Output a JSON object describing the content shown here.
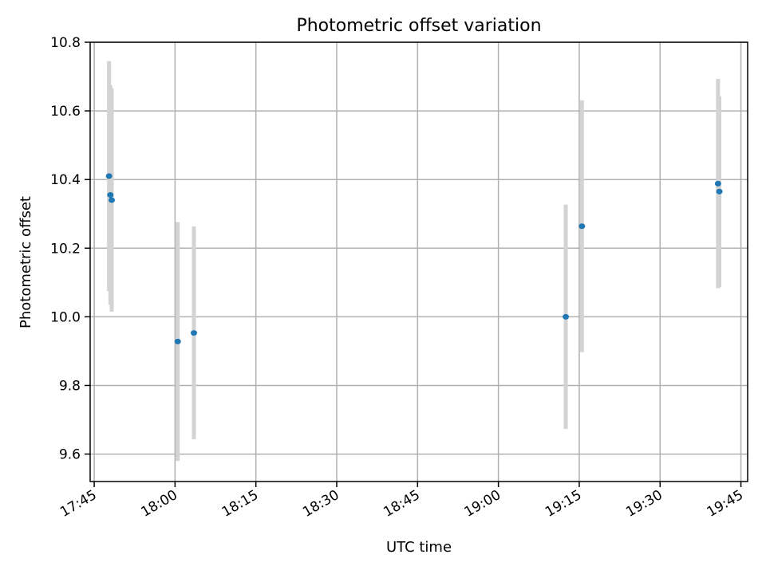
{
  "chart_data": {
    "type": "scatter",
    "title": "Photometric offset variation",
    "xlabel": "UTC time",
    "ylabel": "Photometric offset",
    "x_ticks": [
      "17:45",
      "18:00",
      "18:15",
      "18:30",
      "18:45",
      "19:00",
      "19:15",
      "19:30",
      "19:45"
    ],
    "y_ticks": [
      "9.6",
      "9.8",
      "10.0",
      "10.2",
      "10.4",
      "10.6",
      "10.8"
    ],
    "xlim": [
      "17:44:15",
      "19:46:15"
    ],
    "ylim": [
      9.52,
      10.8
    ],
    "grid": true,
    "points": [
      {
        "time": "17:47:45",
        "value": 10.41,
        "err": 0.335
      },
      {
        "time": "17:48:00",
        "value": 10.355,
        "err": 0.32
      },
      {
        "time": "17:48:15",
        "value": 10.34,
        "err": 0.325
      },
      {
        "time": "18:00:30",
        "value": 9.928,
        "err": 0.348
      },
      {
        "time": "18:03:30",
        "value": 9.953,
        "err": 0.31
      },
      {
        "time": "19:12:30",
        "value": 10.0,
        "err": 0.327
      },
      {
        "time": "19:15:30",
        "value": 10.264,
        "err": 0.367
      },
      {
        "time": "19:40:45",
        "value": 10.388,
        "err": 0.305
      },
      {
        "time": "19:41:00",
        "value": 10.365,
        "err": 0.278
      }
    ]
  }
}
